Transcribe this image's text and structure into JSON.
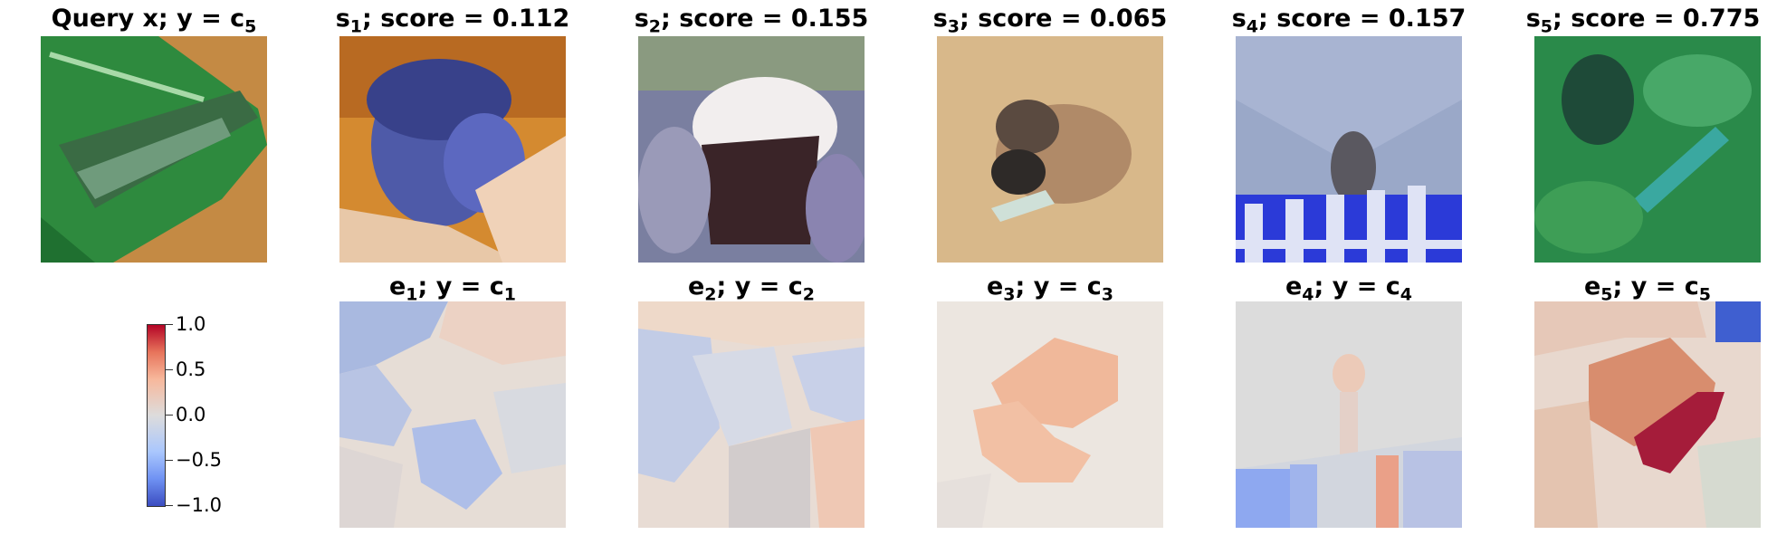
{
  "row1": [
    {
      "var": "Query x",
      "sub": "",
      "eq": "; y = c",
      "eqsub": "5",
      "extra": ""
    },
    {
      "var": "s",
      "sub": "1",
      "eq": "",
      "eqsub": "",
      "extra": "; score = 0.112"
    },
    {
      "var": "s",
      "sub": "2",
      "eq": "",
      "eqsub": "",
      "extra": "; score = 0.155"
    },
    {
      "var": "s",
      "sub": "3",
      "eq": "",
      "eqsub": "",
      "extra": "; score = 0.065"
    },
    {
      "var": "s",
      "sub": "4",
      "eq": "",
      "eqsub": "",
      "extra": "; score = 0.157"
    },
    {
      "var": "s",
      "sub": "5",
      "eq": "",
      "eqsub": "",
      "extra": "; score = 0.775"
    }
  ],
  "row2": [
    {
      "var": "e",
      "sub": "1",
      "eq": "; y = c",
      "eqsub": "1"
    },
    {
      "var": "e",
      "sub": "2",
      "eq": "; y = c",
      "eqsub": "2"
    },
    {
      "var": "e",
      "sub": "3",
      "eq": "; y = c",
      "eqsub": "3"
    },
    {
      "var": "e",
      "sub": "4",
      "eq": "; y = c",
      "eqsub": "4"
    },
    {
      "var": "e",
      "sub": "5",
      "eq": "; y = c",
      "eqsub": "5"
    }
  ],
  "colorbar": {
    "ticks": [
      "1.0",
      "0.5",
      "0.0",
      "−0.5",
      "−1.0"
    ],
    "colors": [
      "#3b4cc0",
      "#dddcdc",
      "#b40426"
    ]
  }
}
